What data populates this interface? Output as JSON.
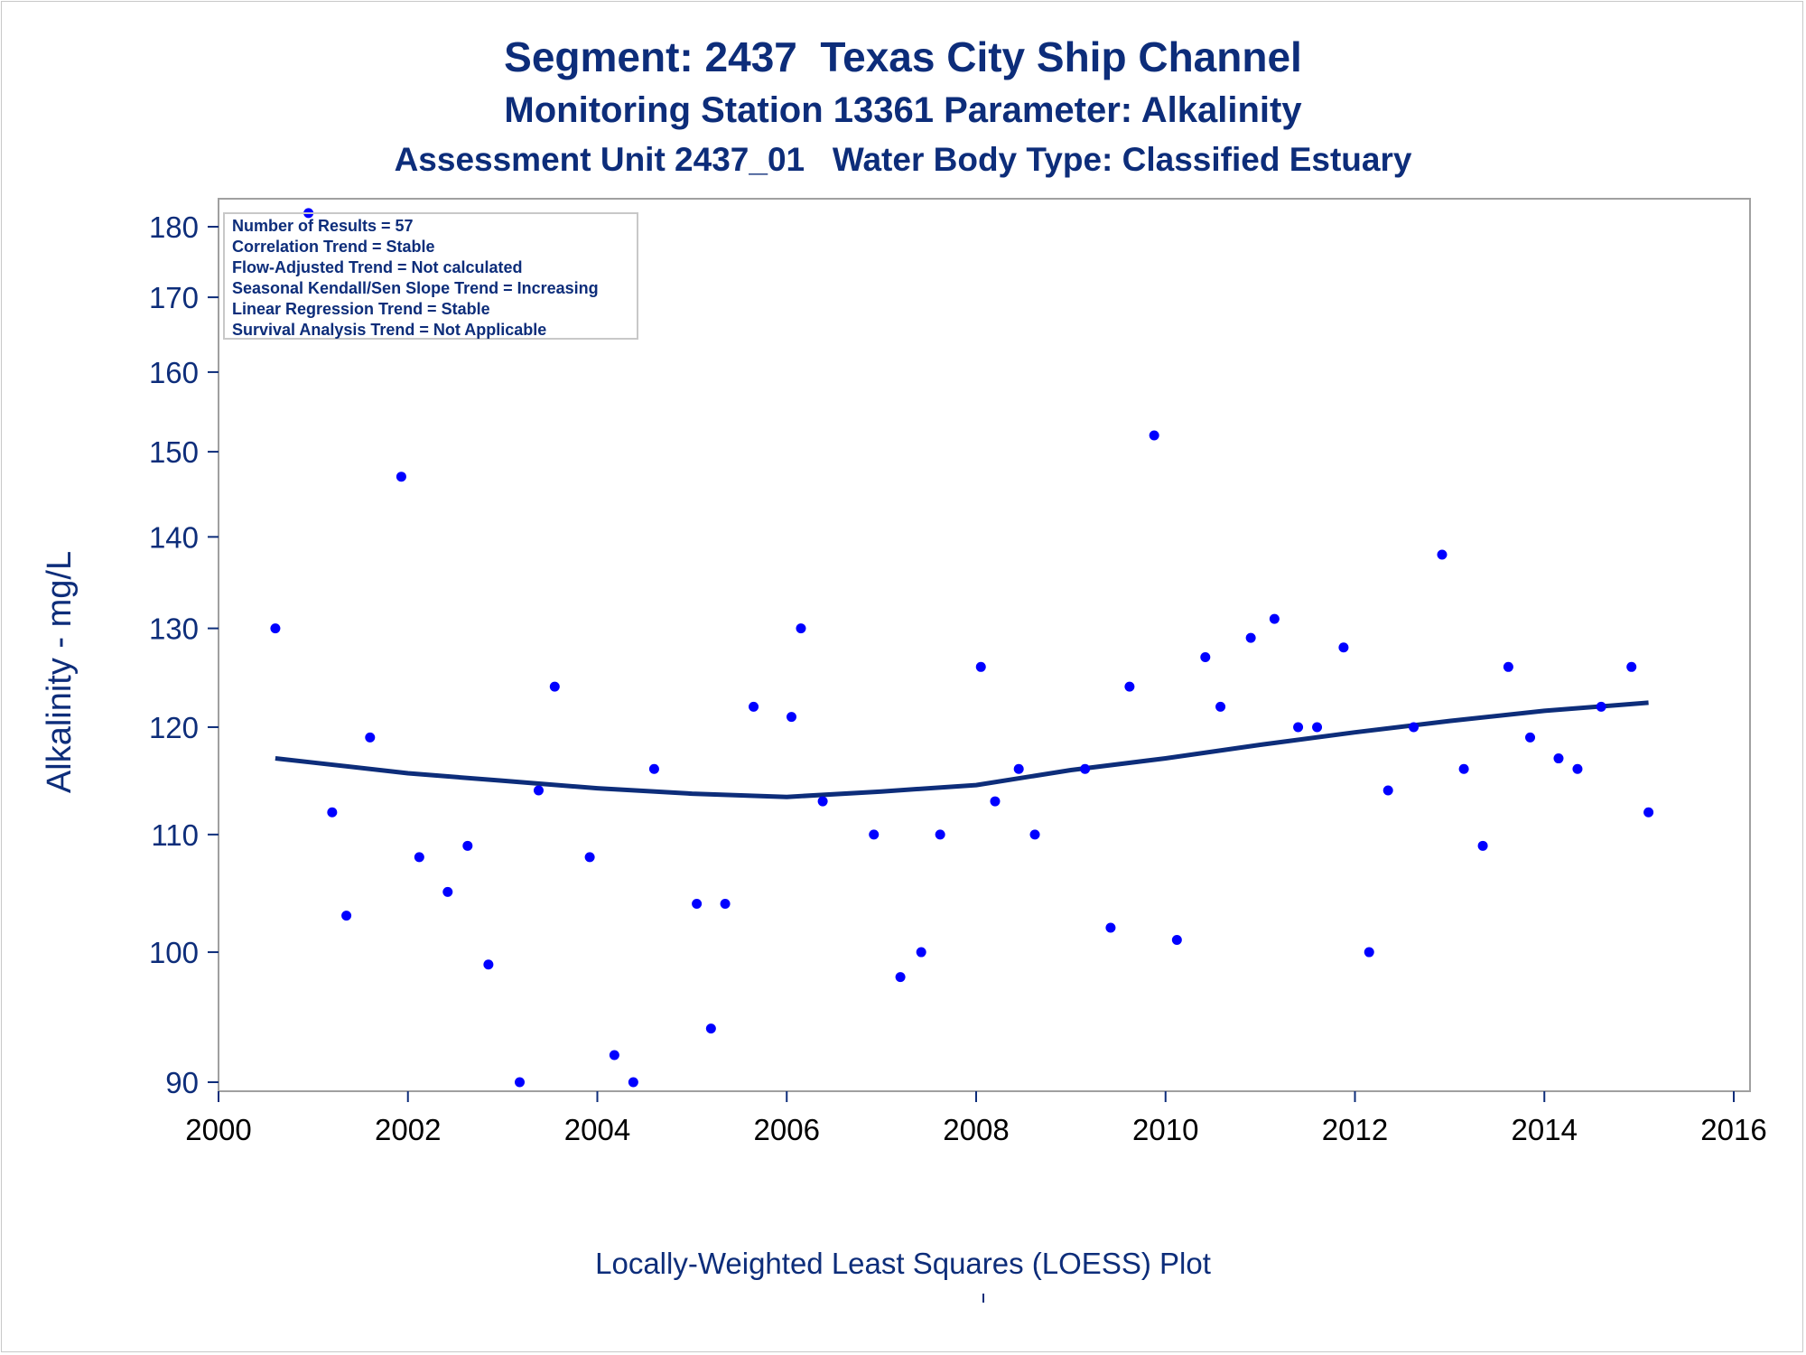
{
  "title_lines": [
    "Segment: 2437  Texas City Ship Channel",
    "Monitoring Station 13361 Parameter: Alkalinity",
    "Assessment Unit 2437_01   Water Body Type: Classified Estuary"
  ],
  "stats_box": {
    "lines": [
      "Number of Results = 57",
      "Correlation Trend = Stable",
      "Flow-Adjusted Trend = Not calculated",
      "Seasonal Kendall/Sen Slope Trend = Increasing",
      "Linear Regression Trend = Stable",
      "Survival Analysis Trend = Not Applicable"
    ]
  },
  "footnote": "Locally-Weighted Least Squares (LOESS) Plot",
  "colors": {
    "text": "#0d2d7a",
    "points": "#0000ff",
    "loess": "#0d2d7a",
    "frame": "#a0a0a0"
  },
  "chart_data": {
    "type": "scatter",
    "title": "Segment: 2437  Texas City Ship Channel",
    "xlabel": "",
    "ylabel": "Alkalinity - mg/L",
    "xlim": [
      2000,
      2016
    ],
    "ylim": [
      88,
      186
    ],
    "y_scale": "log",
    "x_ticks": [
      2000,
      2002,
      2004,
      2006,
      2008,
      2010,
      2012,
      2014,
      2016
    ],
    "y_ticks": [
      90,
      100,
      110,
      120,
      130,
      140,
      150,
      160,
      170,
      180
    ],
    "grid": false,
    "series": [
      {
        "points": [
          [
            2000.6,
            130
          ],
          [
            2000.95,
            182
          ],
          [
            2001.2,
            112
          ],
          [
            2001.35,
            103
          ],
          [
            2001.6,
            119
          ],
          [
            2001.93,
            147
          ],
          [
            2002.12,
            108
          ],
          [
            2002.42,
            105
          ],
          [
            2002.63,
            109
          ],
          [
            2002.85,
            99
          ],
          [
            2003.18,
            90
          ],
          [
            2003.38,
            114
          ],
          [
            2003.55,
            124
          ],
          [
            2003.92,
            108
          ],
          [
            2004.18,
            92
          ],
          [
            2004.38,
            90
          ],
          [
            2004.6,
            116
          ],
          [
            2005.05,
            104
          ],
          [
            2005.2,
            94
          ],
          [
            2005.35,
            104
          ],
          [
            2005.65,
            122
          ],
          [
            2006.05,
            121
          ],
          [
            2006.15,
            130
          ],
          [
            2006.38,
            113
          ],
          [
            2006.92,
            110
          ],
          [
            2007.2,
            98
          ],
          [
            2007.42,
            100
          ],
          [
            2007.62,
            110
          ],
          [
            2008.05,
            126
          ],
          [
            2008.2,
            113
          ],
          [
            2008.45,
            116
          ],
          [
            2008.62,
            110
          ],
          [
            2009.15,
            116
          ],
          [
            2009.42,
            102
          ],
          [
            2009.62,
            124
          ],
          [
            2009.88,
            152
          ],
          [
            2010.12,
            101
          ],
          [
            2010.42,
            127
          ],
          [
            2010.58,
            122
          ],
          [
            2010.9,
            129
          ],
          [
            2011.15,
            131
          ],
          [
            2011.4,
            120
          ],
          [
            2011.6,
            120
          ],
          [
            2011.88,
            128
          ],
          [
            2012.15,
            100
          ],
          [
            2012.35,
            114
          ],
          [
            2012.62,
            120
          ],
          [
            2012.92,
            138
          ],
          [
            2013.15,
            116
          ],
          [
            2013.35,
            109
          ],
          [
            2013.62,
            126
          ],
          [
            2013.85,
            119
          ],
          [
            2014.15,
            117
          ],
          [
            2014.35,
            116
          ],
          [
            2014.6,
            122
          ],
          [
            2014.92,
            126
          ],
          [
            2015.1,
            112
          ]
        ]
      },
      {
        "loess": [
          [
            2000.6,
            117
          ],
          [
            2001,
            116.6
          ],
          [
            2002,
            115.6
          ],
          [
            2003,
            114.9
          ],
          [
            2004,
            114.2
          ],
          [
            2005,
            113.7
          ],
          [
            2006,
            113.4
          ],
          [
            2007,
            113.9
          ],
          [
            2008,
            114.5
          ],
          [
            2009,
            115.9
          ],
          [
            2010,
            117.0
          ],
          [
            2011,
            118.3
          ],
          [
            2012,
            119.5
          ],
          [
            2013,
            120.6
          ],
          [
            2014,
            121.6
          ],
          [
            2015.1,
            122.4
          ]
        ]
      }
    ]
  }
}
